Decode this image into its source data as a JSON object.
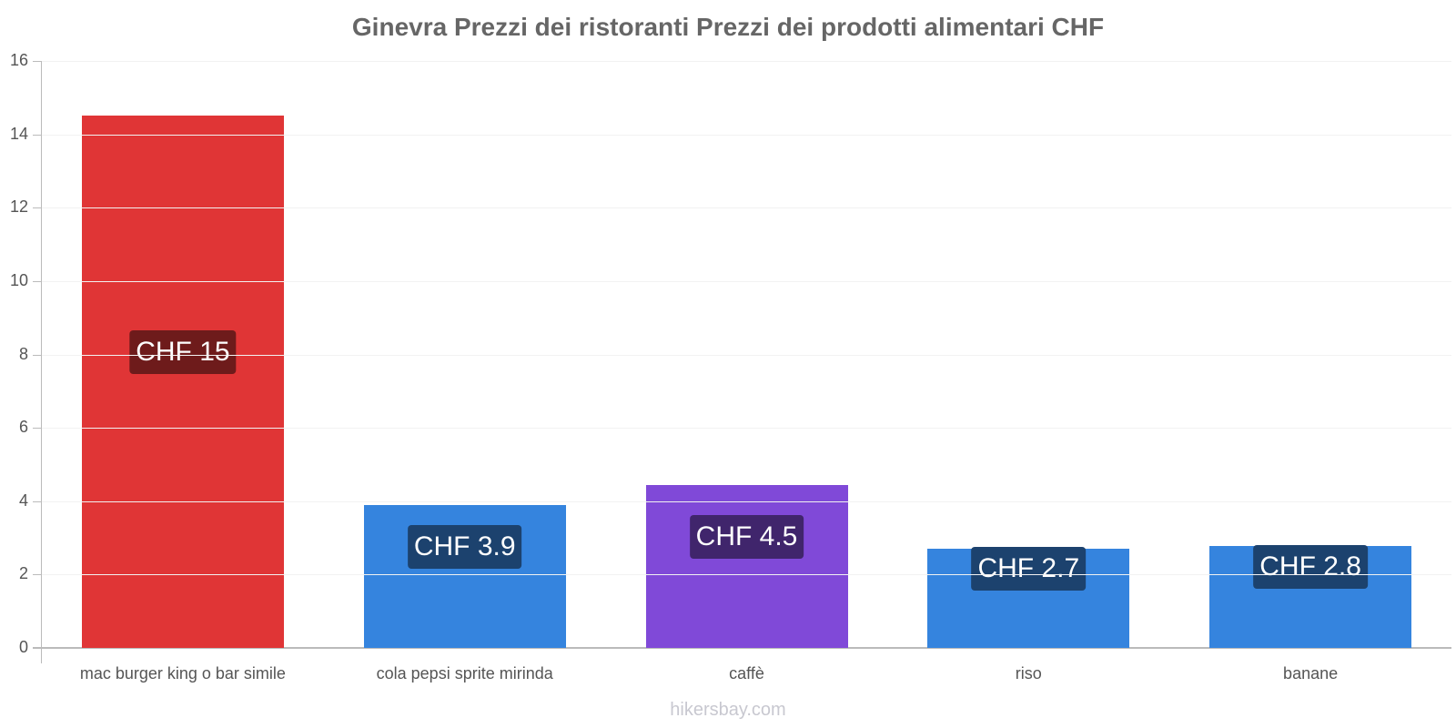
{
  "chart_data": {
    "type": "bar",
    "title": "Ginevra Prezzi dei ristoranti Prezzi dei prodotti alimentari CHF",
    "xlabel": "",
    "ylabel": "",
    "ylim": [
      0,
      16
    ],
    "yticks": [
      0,
      2,
      4,
      6,
      8,
      10,
      12,
      14,
      16
    ],
    "grid": true,
    "legend": null,
    "categories": [
      "mac burger king o bar simile",
      "cola pepsi sprite mirinda",
      "caffè",
      "riso",
      "banane"
    ],
    "values": [
      14.5,
      3.9,
      4.45,
      2.7,
      2.78
    ],
    "value_labels": [
      "CHF 15",
      "CHF 3.9",
      "CHF 4.5",
      "CHF 2.7",
      "CHF 2.8"
    ],
    "bar_colors": [
      "#e03536",
      "#3584de",
      "#8049d8",
      "#3584de",
      "#3584de"
    ],
    "label_bg_colors": [
      "#6e1b1b",
      "#1c426e",
      "#40256c",
      "#1c426e",
      "#1c426e"
    ]
  },
  "watermark": "hikersbay.com"
}
